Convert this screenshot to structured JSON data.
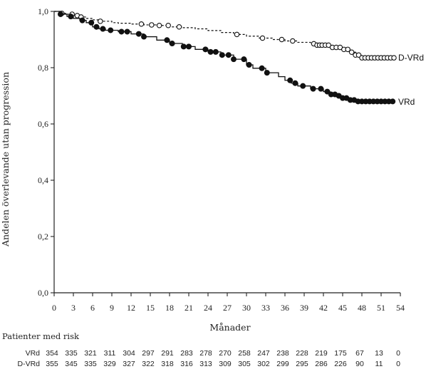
{
  "chart_data": {
    "type": "line",
    "title": "",
    "xlabel": "Månader",
    "ylabel": "Andelen överlevande utan progression",
    "xlim": [
      0,
      54
    ],
    "ylim": [
      0,
      1
    ],
    "x_ticks": [
      "0",
      "3",
      "6",
      "9",
      "12",
      "15",
      "18",
      "21",
      "24",
      "27",
      "30",
      "33",
      "36",
      "39",
      "42",
      "45",
      "48",
      "51",
      "54"
    ],
    "y_ticks": [
      "0,0",
      "0,2",
      "0,4",
      "0,6",
      "0,8",
      "1,0"
    ],
    "grid": false,
    "legend": "inline labels at curve ends",
    "series": [
      {
        "name": "D-VRd",
        "style": "dashed, open circle markers",
        "color": "#111111",
        "points": [
          [
            0,
            1.0
          ],
          [
            1,
            0.993
          ],
          [
            2,
            0.99
          ],
          [
            3,
            0.985
          ],
          [
            4,
            0.98
          ],
          [
            5,
            0.975
          ],
          [
            6,
            0.97
          ],
          [
            7,
            0.965
          ],
          [
            9,
            0.96
          ],
          [
            10,
            0.958
          ],
          [
            12,
            0.955
          ],
          [
            14,
            0.952
          ],
          [
            16,
            0.95
          ],
          [
            18,
            0.945
          ],
          [
            20,
            0.942
          ],
          [
            22,
            0.938
          ],
          [
            24,
            0.932
          ],
          [
            26,
            0.925
          ],
          [
            28,
            0.918
          ],
          [
            30,
            0.912
          ],
          [
            32,
            0.905
          ],
          [
            34,
            0.9
          ],
          [
            36,
            0.895
          ],
          [
            38,
            0.89
          ],
          [
            40,
            0.885
          ],
          [
            41,
            0.88
          ],
          [
            43,
            0.872
          ],
          [
            45,
            0.865
          ],
          [
            46,
            0.855
          ],
          [
            47,
            0.845
          ],
          [
            48,
            0.835
          ],
          [
            49,
            0.835
          ],
          [
            53,
            0.835
          ]
        ],
        "censor_x": [
          1.2,
          2.8,
          3.6,
          4.2,
          7.2,
          13.6,
          15.2,
          16.4,
          17.8,
          19.5,
          28.5,
          32.5,
          35.5,
          37.2,
          40.5,
          41.0,
          41.4,
          41.8,
          42.3,
          42.8,
          43.4,
          44.0,
          44.6,
          45.2,
          45.8,
          46.4,
          47.0,
          47.5,
          48.0,
          48.5,
          49.0,
          49.5,
          50.0,
          50.5,
          51.0,
          51.5,
          52.0,
          52.5,
          53.0
        ]
      },
      {
        "name": "VRd",
        "style": "solid, filled circle markers",
        "color": "#111111",
        "points": [
          [
            0,
            1.0
          ],
          [
            1,
            0.99
          ],
          [
            2,
            0.982
          ],
          [
            3,
            0.975
          ],
          [
            4,
            0.968
          ],
          [
            5,
            0.96
          ],
          [
            6,
            0.945
          ],
          [
            7,
            0.938
          ],
          [
            8,
            0.933
          ],
          [
            10,
            0.928
          ],
          [
            12,
            0.92
          ],
          [
            14,
            0.91
          ],
          [
            16,
            0.898
          ],
          [
            18,
            0.886
          ],
          [
            20,
            0.875
          ],
          [
            22,
            0.865
          ],
          [
            24,
            0.856
          ],
          [
            26,
            0.845
          ],
          [
            28,
            0.83
          ],
          [
            30,
            0.81
          ],
          [
            31,
            0.798
          ],
          [
            33,
            0.782
          ],
          [
            35,
            0.768
          ],
          [
            36,
            0.755
          ],
          [
            37,
            0.745
          ],
          [
            38,
            0.735
          ],
          [
            40,
            0.725
          ],
          [
            42,
            0.715
          ],
          [
            43,
            0.705
          ],
          [
            44,
            0.7
          ],
          [
            45,
            0.692
          ],
          [
            46,
            0.685
          ],
          [
            47,
            0.68
          ],
          [
            53,
            0.678
          ]
        ],
        "censor_x": [
          1.0,
          2.6,
          4.4,
          5.8,
          6.6,
          7.6,
          8.8,
          10.5,
          11.4,
          13.2,
          14.0,
          17.6,
          18.4,
          20.2,
          21.0,
          23.6,
          24.4,
          25.2,
          26.2,
          27.2,
          28.0,
          29.6,
          30.4,
          32.4,
          33.2,
          36.8,
          37.6,
          38.8,
          40.4,
          41.6,
          42.6,
          43.2,
          43.8,
          44.4,
          45.0,
          45.6,
          46.2,
          46.8,
          47.4,
          48.0,
          48.6,
          49.2,
          49.8,
          50.4,
          51.0,
          51.6,
          52.2,
          52.8
        ]
      }
    ],
    "risk_table": {
      "title": "Patienter med risk",
      "rows": [
        {
          "label": "VRd",
          "values": [
            "354",
            "335",
            "321",
            "311",
            "304",
            "297",
            "291",
            "283",
            "278",
            "270",
            "258",
            "247",
            "238",
            "228",
            "219",
            "175",
            "67",
            "13",
            "0"
          ]
        },
        {
          "label": "D-VRd",
          "values": [
            "355",
            "345",
            "335",
            "329",
            "327",
            "322",
            "318",
            "316",
            "313",
            "309",
            "305",
            "302",
            "299",
            "295",
            "286",
            "226",
            "90",
            "11",
            "0"
          ]
        }
      ]
    }
  }
}
